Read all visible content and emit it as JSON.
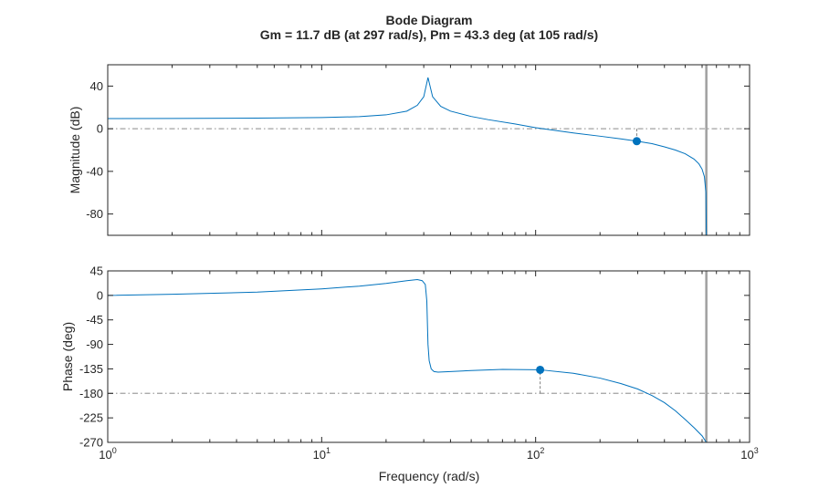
{
  "chart_data": [
    {
      "type": "line",
      "title": "Bode Diagram",
      "subtitle": "Gm = 11.7 dB (at 297 rad/s),  Pm = 43.3 deg (at 105 rad/s)",
      "xlabel": "",
      "ylabel": "Magnitude (dB)",
      "xscale": "log",
      "xlim": [
        1,
        1000
      ],
      "ylim": [
        -100,
        60
      ],
      "yticks": [
        40,
        0,
        -40,
        -80
      ],
      "ytick_labels": [
        "40",
        "0",
        "-40",
        "-80"
      ],
      "grid": false,
      "series_color": "#0072BD",
      "reference_line": {
        "y": 0,
        "style": "dash-dot",
        "color": "#A0A0A0"
      },
      "marker": {
        "x": 297,
        "y": -11.7
      },
      "vertical_line": {
        "x": 628,
        "color": "#A0A0A0"
      },
      "series": [
        {
          "x": [
            1,
            2,
            5,
            10,
            15,
            20,
            25,
            28,
            30,
            31.4,
            33,
            36,
            40,
            50,
            60,
            80,
            100,
            150,
            200,
            250,
            297,
            350,
            400,
            450,
            500,
            550,
            580,
            600,
            615,
            625,
            628
          ],
          "y": [
            9.5,
            9.6,
            10,
            10.5,
            11.3,
            13,
            16.5,
            22,
            30,
            48,
            30,
            21,
            16.5,
            11.5,
            8.5,
            4.5,
            1,
            -4,
            -7,
            -9.5,
            -11.7,
            -14,
            -17,
            -20,
            -23.5,
            -28.5,
            -33,
            -38,
            -45,
            -60,
            -100
          ]
        }
      ]
    },
    {
      "type": "line",
      "xlabel": "Frequency (rad/s)",
      "ylabel": "Phase (deg)",
      "xscale": "log",
      "xlim": [
        1,
        1000
      ],
      "xticks": [
        1,
        10,
        100,
        1000
      ],
      "xtick_bases": [
        "10",
        "10",
        "10",
        "10"
      ],
      "xtick_exponents": [
        "0",
        "1",
        "2",
        "3"
      ],
      "ylim": [
        -270,
        45
      ],
      "yticks": [
        45,
        0,
        -45,
        -90,
        -135,
        -180,
        -225,
        -270
      ],
      "ytick_labels": [
        "45",
        "0",
        "-45",
        "-90",
        "-135",
        "-180",
        "-225",
        "-270"
      ],
      "grid": false,
      "series_color": "#0072BD",
      "reference_line": {
        "y": -180,
        "style": "dash-dot",
        "color": "#A0A0A0"
      },
      "marker": {
        "x": 105,
        "y": -136.7
      },
      "vertical_line": {
        "x": 628,
        "color": "#A0A0A0"
      },
      "series": [
        {
          "x": [
            1,
            2,
            5,
            10,
            15,
            20,
            25,
            28,
            29.5,
            30.5,
            31,
            31.4,
            31.8,
            32.5,
            33.5,
            35,
            40,
            50,
            70,
            100,
            105,
            150,
            200,
            250,
            300,
            350,
            400,
            450,
            500,
            550,
            600,
            628
          ],
          "y": [
            0,
            2,
            6,
            12,
            17,
            22,
            27,
            29,
            27,
            20,
            -10,
            -90,
            -120,
            -135,
            -140,
            -141,
            -140,
            -138,
            -136,
            -136.5,
            -136.7,
            -143,
            -152,
            -162,
            -172,
            -184,
            -197,
            -212,
            -228,
            -243,
            -258,
            -270
          ]
        }
      ]
    }
  ]
}
